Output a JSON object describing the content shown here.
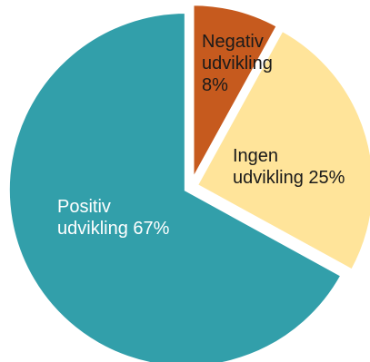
{
  "chart_data": {
    "type": "pie",
    "title": "",
    "slices": [
      {
        "label_lines": [
          "Negativ",
          "udvikling",
          "8%"
        ],
        "value": 8,
        "color": "#C65A1E",
        "label_color": "#1a1a1a"
      },
      {
        "label_lines": [
          "Ingen",
          "udvikling 25%"
        ],
        "value": 25,
        "color": "#FFE49A",
        "label_color": "#1a1a1a"
      },
      {
        "label_lines": [
          "Positiv",
          "udvikling 67%"
        ],
        "value": 67,
        "color": "#329FAA",
        "label_color": "#ffffff"
      }
    ]
  }
}
